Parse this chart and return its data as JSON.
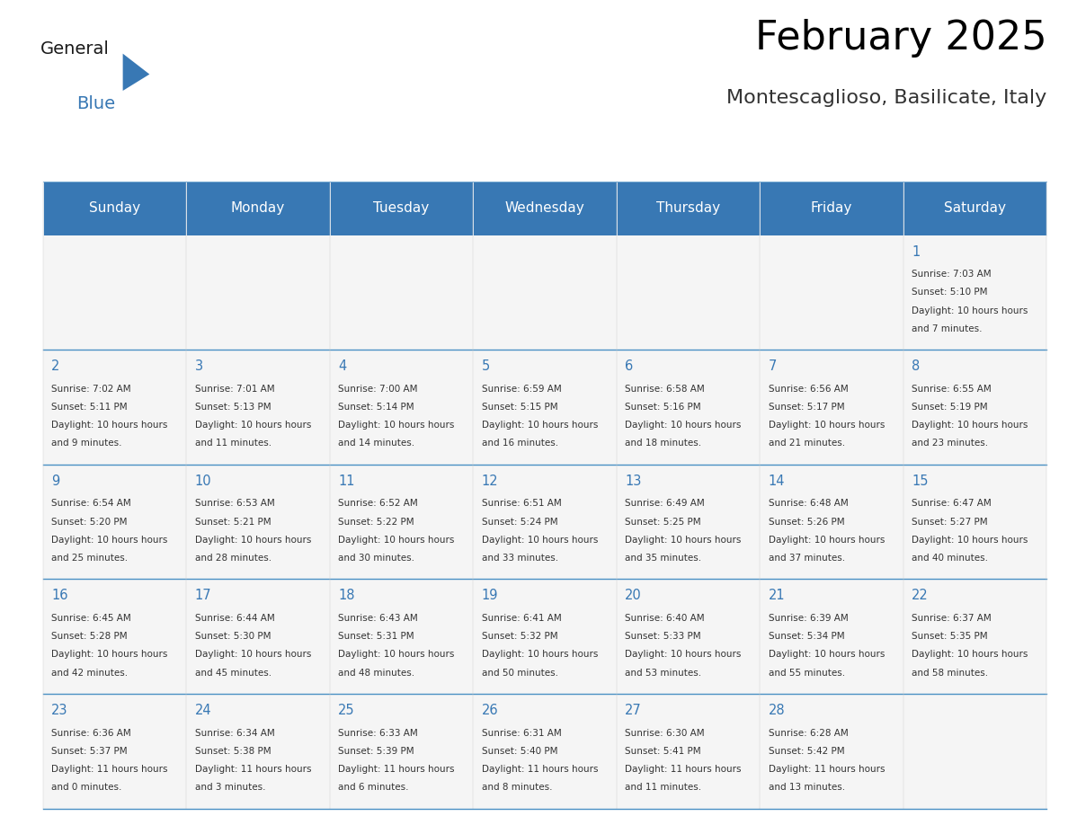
{
  "title": "February 2025",
  "subtitle": "Montescaglioso, Basilicate, Italy",
  "days_of_week": [
    "Sunday",
    "Monday",
    "Tuesday",
    "Wednesday",
    "Thursday",
    "Friday",
    "Saturday"
  ],
  "header_bg": "#3878b4",
  "header_fg": "#ffffff",
  "cell_bg_light": "#f5f5f5",
  "cell_bg_white": "#ffffff",
  "line_color": "#4a90c4",
  "day_num_color": "#3878b4",
  "text_color": "#333333",
  "title_color": "#000000",
  "subtitle_color": "#333333",
  "calendar_data": [
    [
      null,
      null,
      null,
      null,
      null,
      null,
      {
        "day": 1,
        "sunrise": "7:03 AM",
        "sunset": "5:10 PM",
        "daylight": "10 hours and 7 minutes."
      }
    ],
    [
      {
        "day": 2,
        "sunrise": "7:02 AM",
        "sunset": "5:11 PM",
        "daylight": "10 hours and 9 minutes."
      },
      {
        "day": 3,
        "sunrise": "7:01 AM",
        "sunset": "5:13 PM",
        "daylight": "10 hours and 11 minutes."
      },
      {
        "day": 4,
        "sunrise": "7:00 AM",
        "sunset": "5:14 PM",
        "daylight": "10 hours and 14 minutes."
      },
      {
        "day": 5,
        "sunrise": "6:59 AM",
        "sunset": "5:15 PM",
        "daylight": "10 hours and 16 minutes."
      },
      {
        "day": 6,
        "sunrise": "6:58 AM",
        "sunset": "5:16 PM",
        "daylight": "10 hours and 18 minutes."
      },
      {
        "day": 7,
        "sunrise": "6:56 AM",
        "sunset": "5:17 PM",
        "daylight": "10 hours and 21 minutes."
      },
      {
        "day": 8,
        "sunrise": "6:55 AM",
        "sunset": "5:19 PM",
        "daylight": "10 hours and 23 minutes."
      }
    ],
    [
      {
        "day": 9,
        "sunrise": "6:54 AM",
        "sunset": "5:20 PM",
        "daylight": "10 hours and 25 minutes."
      },
      {
        "day": 10,
        "sunrise": "6:53 AM",
        "sunset": "5:21 PM",
        "daylight": "10 hours and 28 minutes."
      },
      {
        "day": 11,
        "sunrise": "6:52 AM",
        "sunset": "5:22 PM",
        "daylight": "10 hours and 30 minutes."
      },
      {
        "day": 12,
        "sunrise": "6:51 AM",
        "sunset": "5:24 PM",
        "daylight": "10 hours and 33 minutes."
      },
      {
        "day": 13,
        "sunrise": "6:49 AM",
        "sunset": "5:25 PM",
        "daylight": "10 hours and 35 minutes."
      },
      {
        "day": 14,
        "sunrise": "6:48 AM",
        "sunset": "5:26 PM",
        "daylight": "10 hours and 37 minutes."
      },
      {
        "day": 15,
        "sunrise": "6:47 AM",
        "sunset": "5:27 PM",
        "daylight": "10 hours and 40 minutes."
      }
    ],
    [
      {
        "day": 16,
        "sunrise": "6:45 AM",
        "sunset": "5:28 PM",
        "daylight": "10 hours and 42 minutes."
      },
      {
        "day": 17,
        "sunrise": "6:44 AM",
        "sunset": "5:30 PM",
        "daylight": "10 hours and 45 minutes."
      },
      {
        "day": 18,
        "sunrise": "6:43 AM",
        "sunset": "5:31 PM",
        "daylight": "10 hours and 48 minutes."
      },
      {
        "day": 19,
        "sunrise": "6:41 AM",
        "sunset": "5:32 PM",
        "daylight": "10 hours and 50 minutes."
      },
      {
        "day": 20,
        "sunrise": "6:40 AM",
        "sunset": "5:33 PM",
        "daylight": "10 hours and 53 minutes."
      },
      {
        "day": 21,
        "sunrise": "6:39 AM",
        "sunset": "5:34 PM",
        "daylight": "10 hours and 55 minutes."
      },
      {
        "day": 22,
        "sunrise": "6:37 AM",
        "sunset": "5:35 PM",
        "daylight": "10 hours and 58 minutes."
      }
    ],
    [
      {
        "day": 23,
        "sunrise": "6:36 AM",
        "sunset": "5:37 PM",
        "daylight": "11 hours and 0 minutes."
      },
      {
        "day": 24,
        "sunrise": "6:34 AM",
        "sunset": "5:38 PM",
        "daylight": "11 hours and 3 minutes."
      },
      {
        "day": 25,
        "sunrise": "6:33 AM",
        "sunset": "5:39 PM",
        "daylight": "11 hours and 6 minutes."
      },
      {
        "day": 26,
        "sunrise": "6:31 AM",
        "sunset": "5:40 PM",
        "daylight": "11 hours and 8 minutes."
      },
      {
        "day": 27,
        "sunrise": "6:30 AM",
        "sunset": "5:41 PM",
        "daylight": "11 hours and 11 minutes."
      },
      {
        "day": 28,
        "sunrise": "6:28 AM",
        "sunset": "5:42 PM",
        "daylight": "11 hours and 13 minutes."
      },
      null
    ]
  ]
}
